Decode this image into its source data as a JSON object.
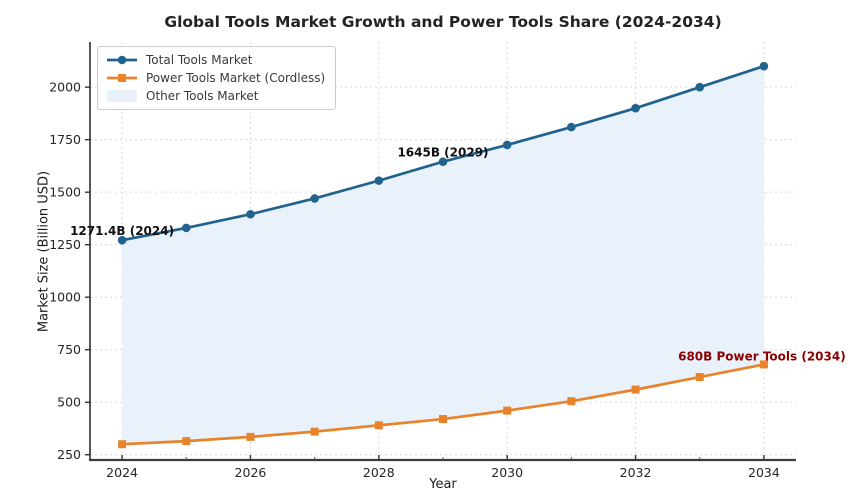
{
  "figure": {
    "background": "#ffffff"
  },
  "chart_data": {
    "type": "line",
    "title": "Global Tools Market Growth and Power Tools Share (2024-2034)",
    "xlabel": "Year",
    "ylabel": "Market Size (Billion USD)",
    "x": [
      2024,
      2025,
      2026,
      2027,
      2028,
      2029,
      2030,
      2031,
      2032,
      2033,
      2034
    ],
    "series": [
      {
        "name": "Total Tools Market",
        "color": "#20638f",
        "marker": "circle",
        "values": [
          1271.4,
          1330,
          1395,
          1470,
          1555,
          1645,
          1725,
          1810,
          1900,
          2000,
          2100
        ]
      },
      {
        "name": "Power Tools Market (Cordless)",
        "color": "#e8832b",
        "marker": "square",
        "values": [
          300,
          315,
          335,
          360,
          390,
          420,
          460,
          505,
          560,
          620,
          680
        ]
      }
    ],
    "fill_between": {
      "name": "Other Tools Market",
      "color": "#e9f2fb",
      "upper_series": 0,
      "lower_series": 1
    },
    "annotations": [
      {
        "text": "1271.4B (2024)",
        "x": 2024,
        "y": 1271.4,
        "color": "#111111"
      },
      {
        "text": "1645B (2029)",
        "x": 2029,
        "y": 1645,
        "color": "#111111"
      },
      {
        "text": "680B Power Tools (2034)",
        "x": 2034,
        "y": 680,
        "color": "#8b0000"
      }
    ],
    "xticks": [
      2024,
      2026,
      2028,
      2030,
      2032,
      2034
    ],
    "xminorticks": [
      2025,
      2027,
      2029,
      2031,
      2033
    ],
    "yticks": [
      250,
      500,
      750,
      1000,
      1250,
      1500,
      1750,
      2000
    ],
    "xlim": [
      2023.5,
      2034.5
    ],
    "ylim": [
      225,
      2215
    ],
    "grid": true,
    "legend_position": "upper-left",
    "axis_colors": {
      "spine_left": "#1f1f1f",
      "spine_bottom": "#3c3c3c",
      "grid": "#d9d9d9",
      "tick_label": "#262626"
    }
  }
}
